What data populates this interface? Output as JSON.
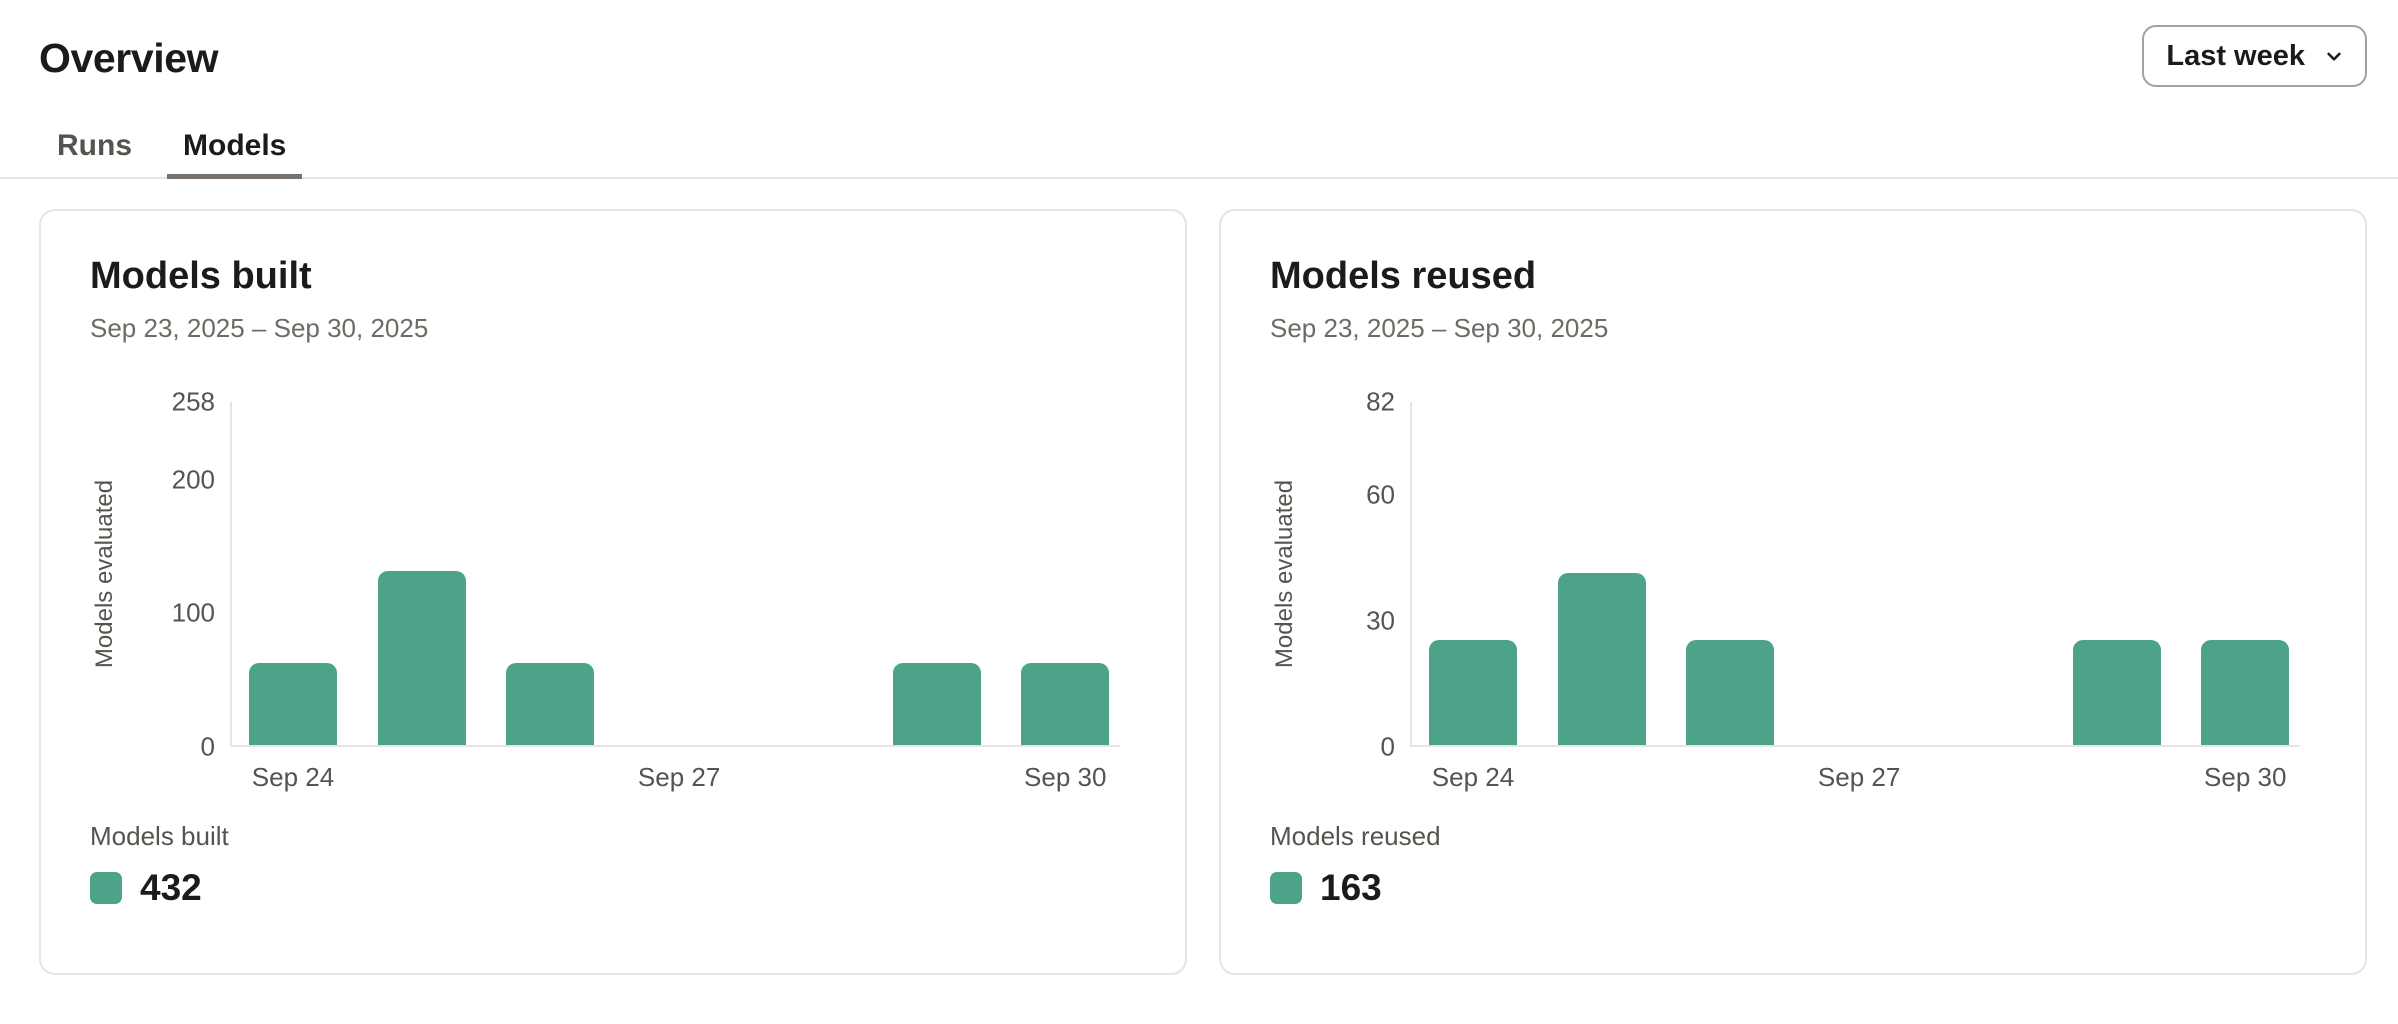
{
  "page": {
    "title": "Overview"
  },
  "time_range": {
    "value": "Last week",
    "icon": "chevron-down-icon"
  },
  "tabs": [
    {
      "label": "Runs",
      "active": false
    },
    {
      "label": "Models",
      "active": true
    }
  ],
  "chart_data": [
    {
      "type": "bar",
      "title": "Models built",
      "subtitle": "Sep 23, 2025 – Sep 30, 2025",
      "ylabel": "Models evaluated",
      "ylim": [
        0,
        258
      ],
      "yticks": [
        0,
        100,
        200,
        258
      ],
      "categories": [
        "Sep 24",
        "Sep 25",
        "Sep 26",
        "Sep 27",
        "Sep 28",
        "Sep 29",
        "Sep 30"
      ],
      "values": [
        61,
        130,
        61,
        0,
        0,
        61,
        61
      ],
      "x_tick_indices": [
        0,
        3,
        6
      ],
      "x_ticks": [
        "Sep 24",
        "Sep 27",
        "Sep 30"
      ],
      "grid": false,
      "legend_position": "bottom-left",
      "legend_label": "Models built",
      "total": 432,
      "color": "#4CA389"
    },
    {
      "type": "bar",
      "title": "Models reused",
      "subtitle": "Sep 23, 2025 – Sep 30, 2025",
      "ylabel": "Models evaluated",
      "ylim": [
        0,
        82
      ],
      "yticks": [
        0,
        30,
        60,
        82
      ],
      "categories": [
        "Sep 24",
        "Sep 25",
        "Sep 26",
        "Sep 27",
        "Sep 28",
        "Sep 29",
        "Sep 30"
      ],
      "values": [
        25,
        41,
        25,
        0,
        0,
        25,
        25
      ],
      "x_tick_indices": [
        0,
        3,
        6
      ],
      "x_ticks": [
        "Sep 24",
        "Sep 27",
        "Sep 30"
      ],
      "grid": false,
      "legend_position": "bottom-left",
      "legend_label": "Models reused",
      "total": 163,
      "color": "#4CA389"
    }
  ],
  "colors": {
    "accent_teal": "#4CA389",
    "text_primary": "#1D1B1A",
    "text_secondary": "#57534E",
    "text_muted": "#6F6A64",
    "border_light": "#E7E5E4",
    "border_medium": "#A6A09B",
    "tab_underline": "#79716B"
  }
}
